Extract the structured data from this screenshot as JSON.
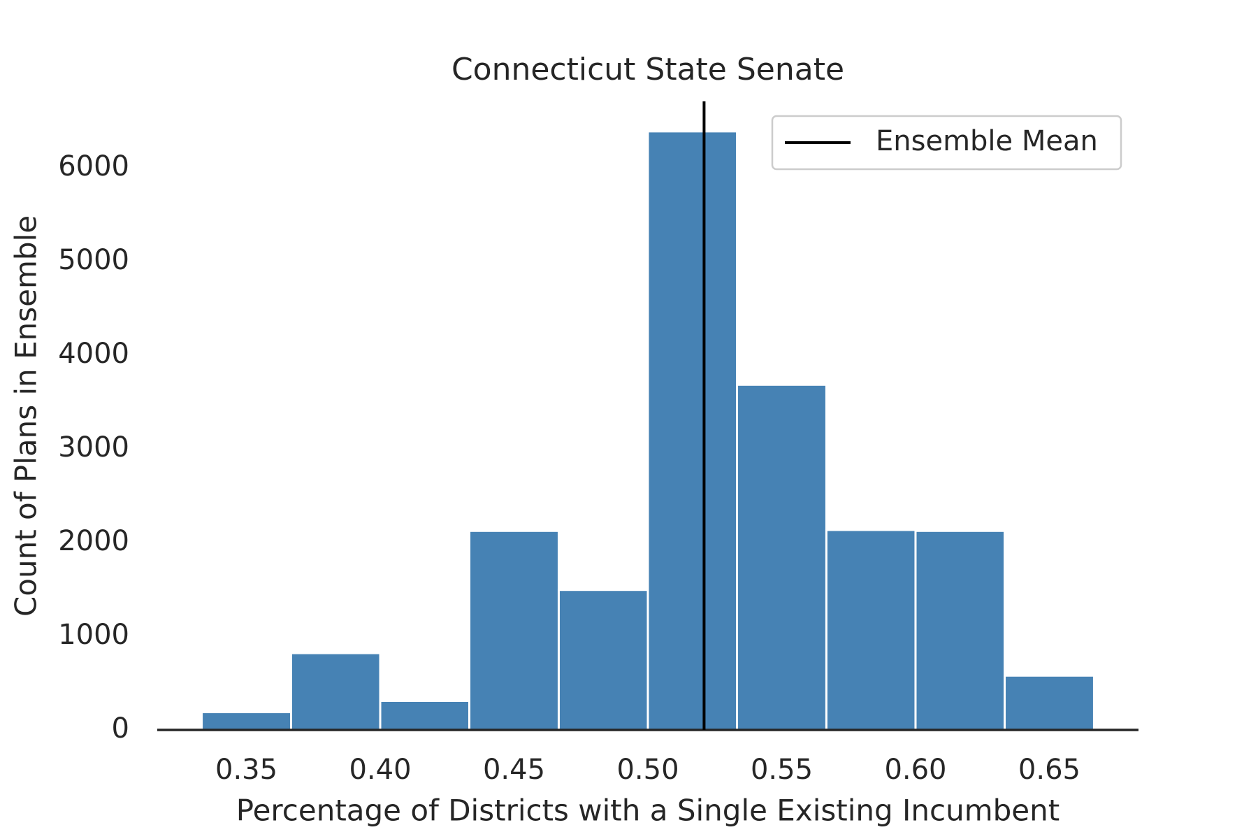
{
  "chart_data": {
    "type": "histogram",
    "title": "Connecticut State Senate",
    "xlabel": "Percentage of Districts with a Single Existing Incumbent",
    "ylabel": "Count of Plans in Ensemble",
    "bins": [
      0.3333,
      0.3667,
      0.4,
      0.4333,
      0.4667,
      0.5,
      0.5333,
      0.5667,
      0.6,
      0.6333,
      0.6667
    ],
    "values": [
      190,
      820,
      310,
      2125,
      1495,
      6390,
      3685,
      2135,
      2125,
      580
    ],
    "color": "#4682b4",
    "vlines": [
      {
        "name": "Ensemble Mean",
        "x": 0.521,
        "color": "#000000"
      }
    ],
    "xlim": [
      0.3167,
      0.6833
    ],
    "ylim": [
      0,
      6710
    ],
    "xticks": [
      0.35,
      {
        "value": 0.4,
        "label": "0.40"
      },
      0.45,
      {
        "value": 0.5,
        "label": "0.50"
      },
      0.55,
      {
        "value": 0.6,
        "label": "0.60"
      },
      0.65
    ],
    "yticks": [
      0,
      1000,
      2000,
      3000,
      4000,
      5000,
      6000
    ],
    "legend": "upper right",
    "grid": false
  }
}
